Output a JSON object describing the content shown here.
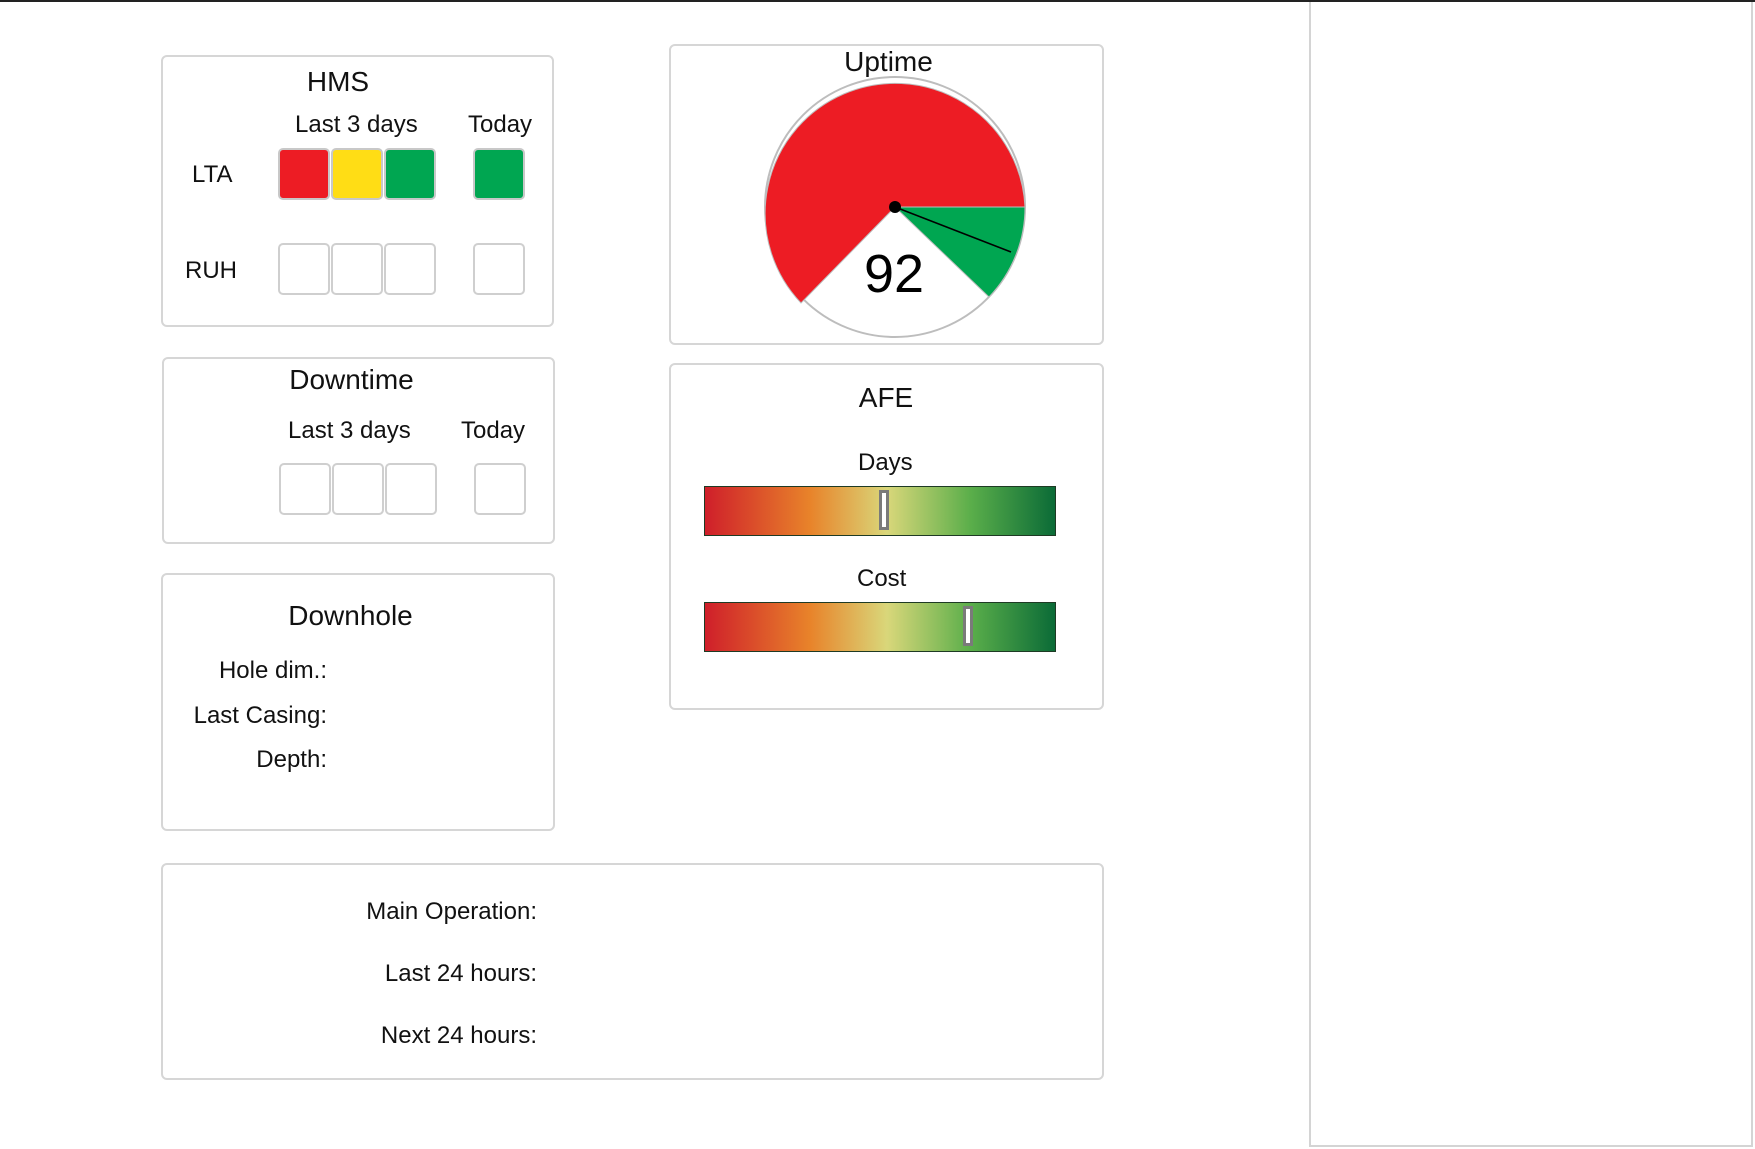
{
  "hms": {
    "title": "HMS",
    "col_last3": "Last 3 days",
    "col_today": "Today",
    "rows": [
      {
        "label": "LTA",
        "last3": [
          "#ed1c24",
          "#ffdd15",
          "#00a651"
        ],
        "today": "#00a651"
      },
      {
        "label": "RUH",
        "last3": [
          "#ffffff",
          "#ffffff",
          "#ffffff"
        ],
        "today": "#ffffff"
      }
    ]
  },
  "uptime": {
    "title": "Uptime",
    "value": "92",
    "colors": {
      "red": "#ed1c24",
      "green": "#00a651"
    }
  },
  "downtime": {
    "title": "Downtime",
    "col_last3": "Last 3 days",
    "col_today": "Today"
  },
  "afe": {
    "title": "AFE",
    "days": {
      "label": "Days",
      "level": 0.51
    },
    "cost": {
      "label": "Cost",
      "level": 0.75
    }
  },
  "downhole": {
    "title": "Downhole",
    "hole_dim_label": "Hole dim.:",
    "last_casing_label": "Last Casing:",
    "depth_label": "Depth:"
  },
  "operations": {
    "main_label": "Main Operation:",
    "last24_label": "Last 24 hours:",
    "next24_label": "Next 24 hours:"
  }
}
